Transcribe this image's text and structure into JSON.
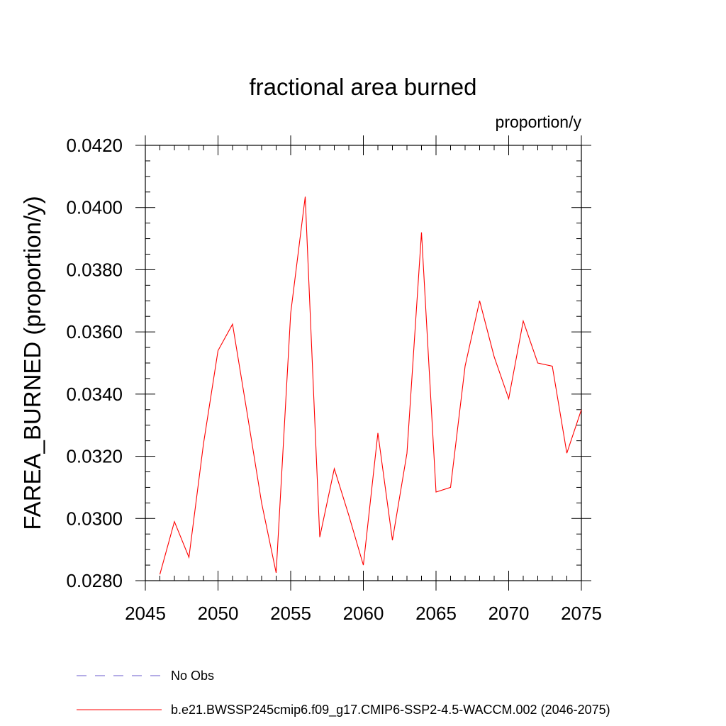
{
  "chart_data": {
    "type": "line",
    "title": "fractional area burned",
    "units_label": "proportion/y",
    "ylabel": "FAREA_BURNED  (proportion/y)",
    "xlabel": "",
    "xlim": [
      2045,
      2075
    ],
    "ylim": [
      0.028,
      0.042
    ],
    "x_ticks": [
      2045,
      2050,
      2055,
      2060,
      2065,
      2070,
      2075
    ],
    "x_tick_labels": [
      "2045",
      "2050",
      "2055",
      "2060",
      "2065",
      "2070",
      "2075"
    ],
    "y_ticks": [
      0.028,
      0.03,
      0.032,
      0.034,
      0.036,
      0.038,
      0.04,
      0.042
    ],
    "y_tick_labels": [
      "0.0280",
      "0.0300",
      "0.0320",
      "0.0340",
      "0.0360",
      "0.0380",
      "0.0400",
      "0.0420"
    ],
    "grid": false,
    "legend_position": "bottom",
    "legend": [
      {
        "label": "No Obs",
        "color": "#6a5acd",
        "style": "dashed"
      },
      {
        "label": "b.e21.BWSSP245cmip6.f09_g17.CMIP6-SSP2-4.5-WACCM.002 (2046-2075)",
        "color": "#ff0000",
        "style": "solid"
      }
    ],
    "series": [
      {
        "name": "b.e21.BWSSP245cmip6.f09_g17.CMIP6-SSP2-4.5-WACCM.002 (2046-2075)",
        "color": "#ff0000",
        "x": [
          2046,
          2047,
          2048,
          2049,
          2050,
          2051,
          2052,
          2053,
          2054,
          2055,
          2056,
          2057,
          2058,
          2059,
          2060,
          2061,
          2062,
          2063,
          2064,
          2065,
          2066,
          2067,
          2068,
          2069,
          2070,
          2071,
          2072,
          2073,
          2074,
          2075
        ],
        "y": [
          0.0282,
          0.0299,
          0.02875,
          0.0324,
          0.0354,
          0.03625,
          0.0334,
          0.0305,
          0.02825,
          0.0366,
          0.04035,
          0.0294,
          0.0316,
          0.0301,
          0.0285,
          0.03275,
          0.0293,
          0.0321,
          0.0392,
          0.03085,
          0.031,
          0.0349,
          0.037,
          0.0352,
          0.03385,
          0.03635,
          0.035,
          0.0349,
          0.0321,
          0.0335
        ]
      }
    ]
  }
}
